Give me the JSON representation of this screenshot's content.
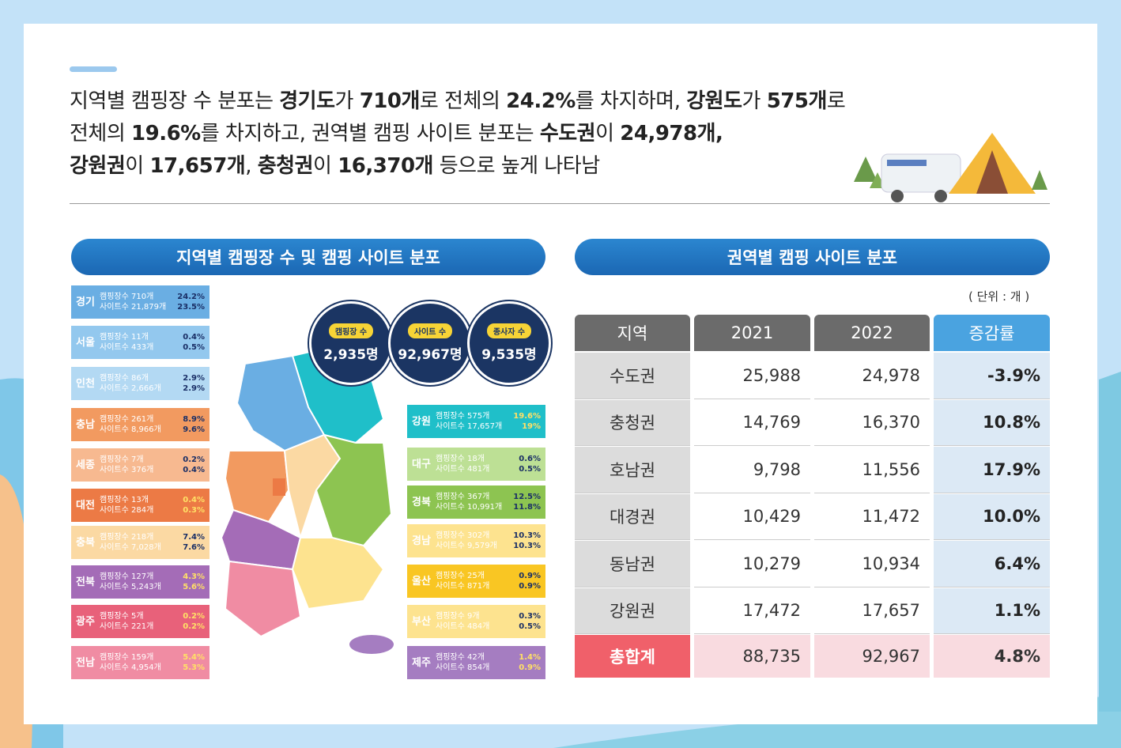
{
  "headline": [
    [
      {
        "t": "지역별 캠핑장 수 분포는 "
      },
      {
        "t": "경기도",
        "b": true
      },
      {
        "t": "가 "
      },
      {
        "t": "710개",
        "b": true
      },
      {
        "t": "로 전체의 "
      },
      {
        "t": "24.2%",
        "b": true
      },
      {
        "t": "를 차지하며, "
      },
      {
        "t": "강원도",
        "b": true
      },
      {
        "t": "가 "
      },
      {
        "t": "575개",
        "b": true
      },
      {
        "t": "로"
      }
    ],
    [
      {
        "t": "전체의 "
      },
      {
        "t": "19.6%",
        "b": true
      },
      {
        "t": "를 차지하고, 권역별 캠핑 사이트 분포는 "
      },
      {
        "t": "수도권",
        "b": true
      },
      {
        "t": "이 "
      },
      {
        "t": "24,978개,",
        "b": true
      }
    ],
    [
      {
        "t": "강원권",
        "b": true
      },
      {
        "t": "이 "
      },
      {
        "t": "17,657개",
        "b": true
      },
      {
        "t": ", "
      },
      {
        "t": "충청권",
        "b": true
      },
      {
        "t": "이 "
      },
      {
        "t": "16,370개",
        "b": true
      },
      {
        "t": " 등으로 높게 나타남"
      }
    ]
  ],
  "left_panel": {
    "title": "지역별 캠핑장 수 및 캠핑 사이트 분포",
    "stats": [
      {
        "label": "캠핑장 수",
        "value": "2,935명"
      },
      {
        "label": "사이트 수",
        "value": "92,967명"
      },
      {
        "label": "종사자 수",
        "value": "9,535명"
      }
    ],
    "regions_left": [
      {
        "name": "경기",
        "camp": "캠핑장수 710개",
        "site": "사이트수 21,879개",
        "p1": "24.2%",
        "p2": "23.5%",
        "color": "#6aaee3",
        "pct_color": "#1a2f66"
      },
      {
        "name": "서울",
        "camp": "캠핑장수 11개",
        "site": "사이트수 433개",
        "p1": "0.4%",
        "p2": "0.5%",
        "color": "#93c8ee",
        "pct_color": "#1a2f66"
      },
      {
        "name": "인천",
        "camp": "캠핑장수 86개",
        "site": "사이트수 2,666개",
        "p1": "2.9%",
        "p2": "2.9%",
        "color": "#b3d9f3",
        "pct_color": "#1a2f66"
      },
      {
        "name": "충남",
        "camp": "캠핑장수 261개",
        "site": "사이트수 8,966개",
        "p1": "8.9%",
        "p2": "9.6%",
        "color": "#f29a60",
        "pct_color": "#1a2f66"
      },
      {
        "name": "세종",
        "camp": "캠핑장수 7개",
        "site": "사이트수 376개",
        "p1": "0.2%",
        "p2": "0.4%",
        "color": "#f7b990",
        "pct_color": "#1a2f66"
      },
      {
        "name": "대전",
        "camp": "캠핑장수 13개",
        "site": "사이트수 284개",
        "p1": "0.4%",
        "p2": "0.3%",
        "color": "#ec7a45",
        "pct_color": "#ffe066"
      },
      {
        "name": "충북",
        "camp": "캠핑장수 218개",
        "site": "사이트수 7,028개",
        "p1": "7.4%",
        "p2": "7.6%",
        "color": "#fbd9a3",
        "pct_color": "#1a2f66"
      },
      {
        "name": "전북",
        "camp": "캠핑장수 127개",
        "site": "사이트수 5,243개",
        "p1": "4.3%",
        "p2": "5.6%",
        "color": "#a46cb7",
        "pct_color": "#ffe066"
      },
      {
        "name": "광주",
        "camp": "캠핑장수 5개",
        "site": "사이트수 221개",
        "p1": "0.2%",
        "p2": "0.2%",
        "color": "#e8617a",
        "pct_color": "#ffe066"
      },
      {
        "name": "전남",
        "camp": "캠핑장수 159개",
        "site": "사이트수 4,954개",
        "p1": "5.4%",
        "p2": "5.3%",
        "color": "#f08ca3",
        "pct_color": "#ffe066"
      }
    ],
    "regions_right": [
      {
        "name": "강원",
        "camp": "캠핑장수 575개",
        "site": "사이트수 17,657개",
        "p1": "19.6%",
        "p2": "19%",
        "color": "#1fbfc9",
        "pct_color": "#ffe066"
      },
      {
        "name": "대구",
        "camp": "캠핑장수 18개",
        "site": "사이트수 481개",
        "p1": "0.6%",
        "p2": "0.5%",
        "color": "#bde095",
        "pct_color": "#1a2f66"
      },
      {
        "name": "경북",
        "camp": "캠핑장수 367개",
        "site": "사이트수 10,991개",
        "p1": "12.5%",
        "p2": "11.8%",
        "color": "#8dc451",
        "pct_color": "#1a2f66"
      },
      {
        "name": "경남",
        "camp": "캠핑장수 302개",
        "site": "사이트수 9,579개",
        "p1": "10.3%",
        "p2": "10.3%",
        "color": "#fde38f",
        "pct_color": "#1a2f66"
      },
      {
        "name": "울산",
        "camp": "캠핑장수 25개",
        "site": "사이트수 871개",
        "p1": "0.9%",
        "p2": "0.9%",
        "color": "#f9c623",
        "pct_color": "#1a2f66"
      },
      {
        "name": "부산",
        "camp": "캠핑장수 9개",
        "site": "사이트수 484개",
        "p1": "0.3%",
        "p2": "0.5%",
        "color": "#fde38f",
        "pct_color": "#1a2f66"
      },
      {
        "name": "제주",
        "camp": "캠핑장수 42개",
        "site": "사이트수 854개",
        "p1": "1.4%",
        "p2": "0.9%",
        "color": "#a57dc1",
        "pct_color": "#ffe066"
      }
    ]
  },
  "right_panel": {
    "title": "권역별 캠핑 사이트 분포",
    "unit": "( 단위 : 개 )",
    "table": {
      "header": [
        "지역",
        "2021",
        "2022",
        "증감률"
      ],
      "rows": [
        [
          "수도권",
          "25,988",
          "24,978",
          "-3.9%"
        ],
        [
          "충청권",
          "14,769",
          "16,370",
          "10.8%"
        ],
        [
          "호남권",
          "9,798",
          "11,556",
          "17.9%"
        ],
        [
          "대경권",
          "10,429",
          "11,472",
          "10.0%"
        ],
        [
          "동남권",
          "10,279",
          "10,934",
          "6.4%"
        ],
        [
          "강원권",
          "17,472",
          "17,657",
          "1.1%"
        ]
      ],
      "total": [
        "총합계",
        "88,735",
        "92,967",
        "4.8%"
      ]
    }
  }
}
